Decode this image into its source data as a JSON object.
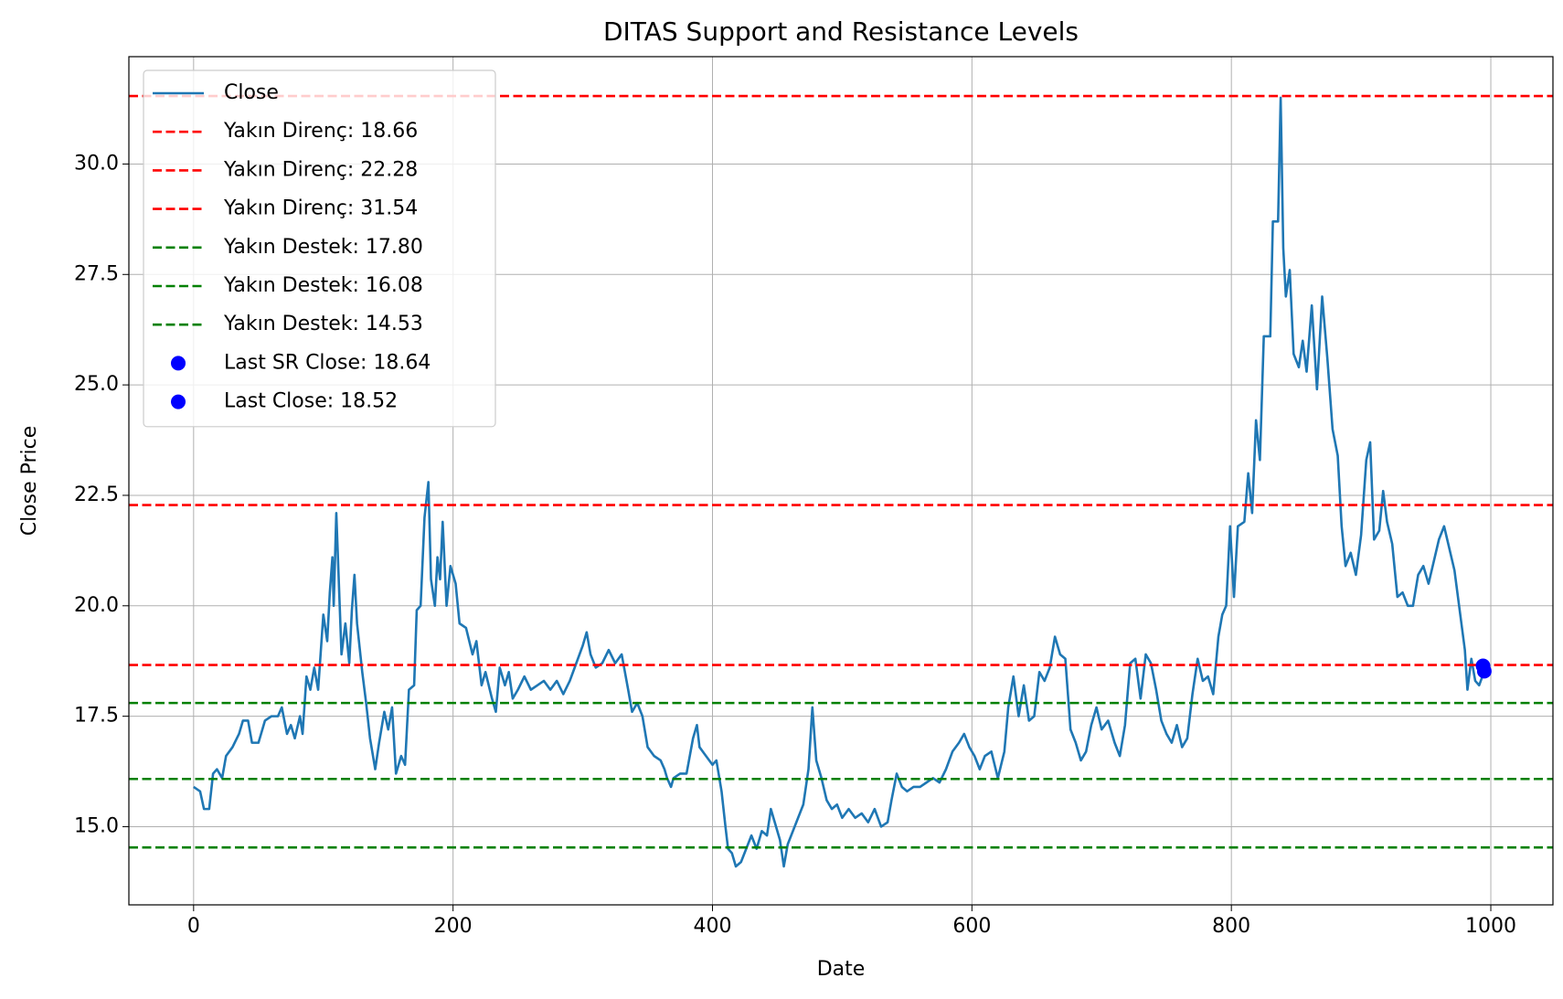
{
  "chart_data": {
    "type": "line",
    "title": "DITAS Support and Resistance Levels",
    "xlabel": "Date",
    "ylabel": "Close Price",
    "x": [
      0,
      5,
      8,
      12,
      15,
      18,
      22,
      25,
      30,
      35,
      38,
      42,
      45,
      50,
      55,
      60,
      65,
      68,
      72,
      75,
      78,
      82,
      84,
      87,
      90,
      93,
      96,
      100,
      103,
      105,
      107,
      108,
      110,
      112,
      114,
      117,
      120,
      122,
      124,
      126,
      130,
      133,
      136,
      140,
      143,
      147,
      150,
      153,
      156,
      160,
      163,
      166,
      170,
      172,
      175,
      178,
      181,
      183,
      186,
      188,
      190,
      192,
      195,
      198,
      202,
      205,
      210,
      215,
      218,
      222,
      225,
      230,
      233,
      236,
      240,
      243,
      246,
      250,
      255,
      260,
      265,
      270,
      275,
      280,
      285,
      290,
      295,
      300,
      303,
      306,
      310,
      315,
      320,
      325,
      330,
      335,
      338,
      342,
      346,
      350,
      355,
      360,
      363,
      365,
      368,
      370,
      375,
      380,
      385,
      388,
      390,
      395,
      400,
      403,
      407,
      410,
      412,
      415,
      418,
      422,
      426,
      430,
      434,
      438,
      442,
      445,
      448,
      452,
      455,
      458,
      462,
      466,
      470,
      474,
      477,
      480,
      484,
      488,
      492,
      496,
      500,
      505,
      510,
      515,
      520,
      525,
      530,
      535,
      538,
      542,
      546,
      550,
      555,
      560,
      565,
      570,
      575,
      580,
      585,
      590,
      594,
      598,
      602,
      606,
      610,
      615,
      620,
      625,
      628,
      632,
      636,
      640,
      644,
      648,
      652,
      656,
      660,
      664,
      668,
      672,
      676,
      680,
      684,
      688,
      692,
      696,
      700,
      705,
      710,
      714,
      718,
      722,
      726,
      730,
      734,
      738,
      742,
      746,
      750,
      754,
      758,
      762,
      766,
      770,
      774,
      778,
      782,
      786,
      790,
      793,
      796,
      799,
      802,
      805,
      810,
      813,
      816,
      819,
      822,
      825,
      830,
      832,
      836,
      838,
      840,
      842,
      845,
      848,
      852,
      855,
      858,
      862,
      866,
      870,
      874,
      878,
      882,
      885,
      888,
      892,
      896,
      900,
      904,
      907,
      910,
      914,
      917,
      920,
      924,
      928,
      932,
      936,
      940,
      944,
      948,
      952,
      956,
      960,
      964,
      968,
      972,
      976,
      980,
      982,
      985,
      988,
      991,
      995
    ],
    "series": [
      {
        "name": "Close",
        "color": "#1f77b4",
        "values": [
          15.9,
          15.8,
          15.4,
          15.4,
          16.2,
          16.3,
          16.1,
          16.6,
          16.8,
          17.1,
          17.4,
          17.4,
          16.9,
          16.9,
          17.4,
          17.5,
          17.5,
          17.7,
          17.1,
          17.3,
          17.0,
          17.5,
          17.1,
          18.4,
          18.1,
          18.6,
          18.1,
          19.8,
          19.2,
          20.3,
          21.1,
          20.0,
          22.1,
          20.5,
          18.9,
          19.6,
          18.7,
          19.9,
          20.7,
          19.6,
          18.5,
          17.8,
          17.0,
          16.3,
          16.9,
          17.6,
          17.2,
          17.7,
          16.2,
          16.6,
          16.4,
          18.1,
          18.2,
          19.9,
          20.0,
          22.0,
          22.8,
          20.6,
          20.0,
          21.1,
          20.6,
          21.9,
          20.0,
          20.9,
          20.5,
          19.6,
          19.5,
          18.9,
          19.2,
          18.2,
          18.5,
          17.9,
          17.6,
          18.6,
          18.2,
          18.5,
          17.9,
          18.1,
          18.4,
          18.1,
          18.2,
          18.3,
          18.1,
          18.3,
          18.0,
          18.3,
          18.7,
          19.1,
          19.4,
          18.9,
          18.6,
          18.7,
          19.0,
          18.7,
          18.9,
          18.1,
          17.6,
          17.8,
          17.5,
          16.8,
          16.6,
          16.5,
          16.3,
          16.1,
          15.9,
          16.1,
          16.2,
          16.2,
          17.0,
          17.3,
          16.8,
          16.6,
          16.4,
          16.5,
          15.8,
          15.0,
          14.5,
          14.4,
          14.1,
          14.2,
          14.5,
          14.8,
          14.5,
          14.9,
          14.8,
          15.4,
          15.1,
          14.7,
          14.1,
          14.6,
          14.9,
          15.2,
          15.5,
          16.3,
          17.7,
          16.5,
          16.1,
          15.6,
          15.4,
          15.5,
          15.2,
          15.4,
          15.2,
          15.3,
          15.1,
          15.4,
          15.0,
          15.1,
          15.6,
          16.2,
          15.9,
          15.8,
          15.9,
          15.9,
          16.0,
          16.1,
          16.0,
          16.3,
          16.7,
          16.9,
          17.1,
          16.8,
          16.6,
          16.3,
          16.6,
          16.7,
          16.1,
          16.7,
          17.7,
          18.4,
          17.5,
          18.2,
          17.4,
          17.5,
          18.5,
          18.3,
          18.6,
          19.3,
          18.9,
          18.8,
          17.2,
          16.9,
          16.5,
          16.7,
          17.3,
          17.7,
          17.2,
          17.4,
          16.9,
          16.6,
          17.3,
          18.7,
          18.8,
          17.9,
          18.9,
          18.7,
          18.1,
          17.4,
          17.1,
          16.9,
          17.3,
          16.8,
          17.0,
          18.0,
          18.8,
          18.3,
          18.4,
          18.0,
          19.3,
          19.8,
          20.0,
          21.8,
          20.2,
          21.8,
          21.9,
          23.0,
          22.1,
          24.2,
          23.3,
          26.1,
          26.1,
          28.7,
          28.7,
          31.5,
          28.1,
          27.0,
          27.6,
          25.7,
          25.4,
          26.0,
          25.3,
          26.8,
          24.9,
          27.0,
          25.6,
          24.0,
          23.4,
          21.8,
          20.9,
          21.2,
          20.7,
          21.6,
          23.3,
          23.7,
          21.5,
          21.7,
          22.6,
          21.9,
          21.4,
          20.2,
          20.3,
          20.0,
          20.0,
          20.7,
          20.9,
          20.5,
          21.0,
          21.5,
          21.8,
          21.3,
          20.8,
          19.9,
          19.0,
          18.1,
          18.8,
          18.3,
          18.2,
          18.52
        ]
      }
    ],
    "hlines": [
      {
        "name": "Yakın Direnç: 18.66",
        "value": 18.66,
        "color": "red"
      },
      {
        "name": "Yakın Direnç: 22.28",
        "value": 22.28,
        "color": "red"
      },
      {
        "name": "Yakın Direnç: 31.54",
        "value": 31.54,
        "color": "red"
      },
      {
        "name": "Yakın Destek: 17.80",
        "value": 17.8,
        "color": "green"
      },
      {
        "name": "Yakın Destek: 16.08",
        "value": 16.08,
        "color": "green"
      },
      {
        "name": "Yakın Destek: 14.53",
        "value": 14.53,
        "color": "green"
      }
    ],
    "points": [
      {
        "name": "Last SR Close: 18.64",
        "x": 994,
        "y": 18.64,
        "color": "blue"
      },
      {
        "name": "Last Close: 18.52",
        "x": 995,
        "y": 18.52,
        "color": "blue"
      }
    ],
    "xlim": [
      -49.9,
      1047.9
    ],
    "ylim": [
      13.23,
      32.43
    ],
    "xticks": [
      0,
      200,
      400,
      600,
      800,
      1000
    ],
    "yticks": [
      {
        "value": 15,
        "label": "15.0"
      },
      {
        "value": 17.5,
        "label": "17.5"
      },
      {
        "value": 20,
        "label": "20.0"
      },
      {
        "value": 22.5,
        "label": "22.5"
      },
      {
        "value": 25,
        "label": "25.0"
      },
      {
        "value": 27.5,
        "label": "27.5"
      },
      {
        "value": 30,
        "label": "30.0"
      }
    ],
    "grid": true,
    "legend": "upper left"
  }
}
